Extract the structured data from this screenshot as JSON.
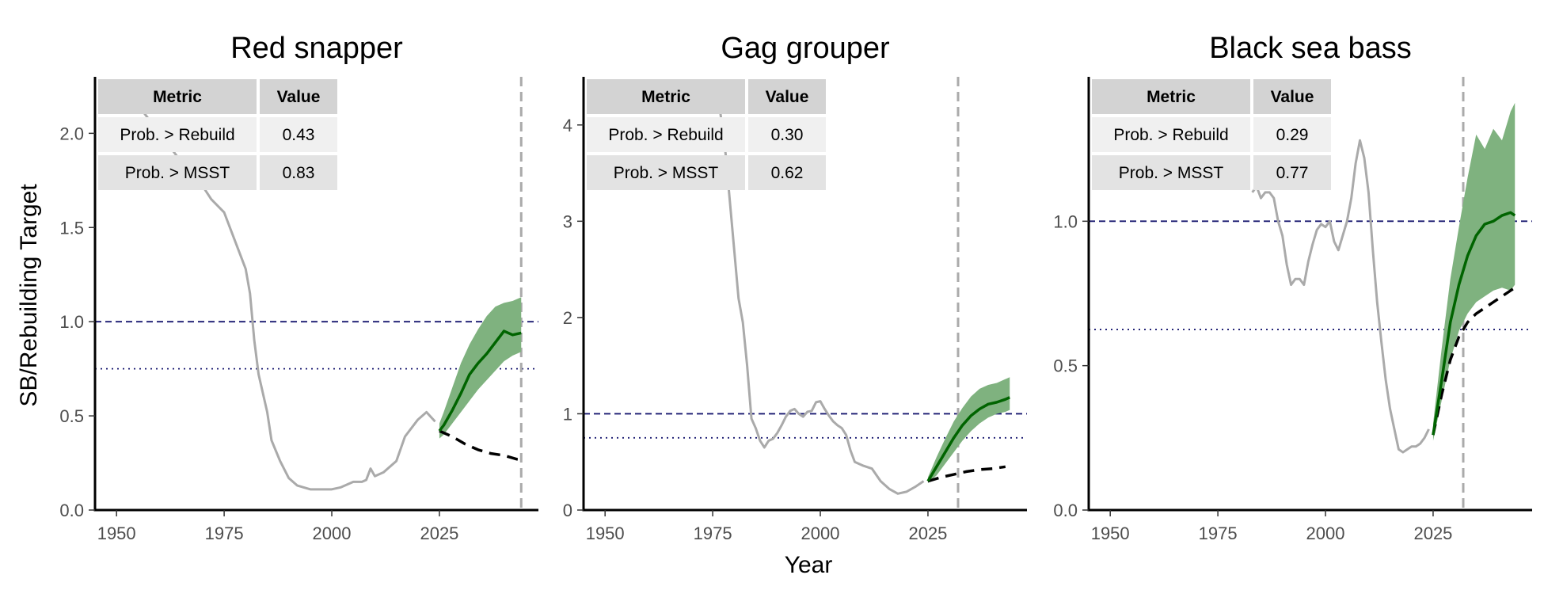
{
  "figure": {
    "xlabel": "Year",
    "ylabel": "SB/Rebuilding Target"
  },
  "colors": {
    "historical": "#aaaaaa",
    "projection_median": "#006400",
    "projection_band": "#7fb27f",
    "alt_projection": "#000000",
    "rebuild_line": "#191970",
    "msst_line": "#191970",
    "target_year_line": "#aaaaaa",
    "table_header_bg": "#d3d3d3",
    "table_row1_bg": "#f0f0f0",
    "table_row2_bg": "#e3e3e3"
  },
  "chart_data": [
    {
      "type": "line",
      "title": "Red snapper",
      "xlim": [
        1945,
        2048
      ],
      "ylim": [
        0,
        2.3
      ],
      "xticks": [
        1950,
        1975,
        2000,
        2025
      ],
      "yticks": [
        0.0,
        0.5,
        1.0,
        1.5,
        2.0
      ],
      "ytick_labels": [
        "0.0",
        "0.5",
        "1.0",
        "1.5",
        "2.0"
      ],
      "rebuild_target": 1.0,
      "msst": 0.75,
      "target_year": 2044,
      "table": {
        "headers": [
          "Metric",
          "Value"
        ],
        "rows": [
          [
            "Prob. > Rebuild",
            "0.43"
          ],
          [
            "Prob. > MSST",
            "0.83"
          ]
        ]
      },
      "historical": {
        "x": [
          1950,
          1955,
          1960,
          1965,
          1970,
          1972,
          1975,
          1978,
          1980,
          1981,
          1982,
          1983,
          1985,
          1986,
          1988,
          1990,
          1992,
          1995,
          1998,
          2000,
          2002,
          2003,
          2005,
          2007,
          2008,
          2009,
          2010,
          2012,
          2015,
          2017,
          2020,
          2022,
          2024
        ],
        "y": [
          2.25,
          2.15,
          2.0,
          1.85,
          1.72,
          1.65,
          1.58,
          1.4,
          1.28,
          1.15,
          0.9,
          0.72,
          0.52,
          0.37,
          0.26,
          0.17,
          0.13,
          0.11,
          0.11,
          0.11,
          0.12,
          0.13,
          0.15,
          0.15,
          0.16,
          0.22,
          0.18,
          0.2,
          0.26,
          0.39,
          0.48,
          0.52,
          0.47
        ]
      },
      "projection": {
        "x": [
          2025,
          2026,
          2028,
          2030,
          2032,
          2034,
          2036,
          2038,
          2040,
          2042,
          2044
        ],
        "median": [
          0.42,
          0.45,
          0.53,
          0.62,
          0.72,
          0.78,
          0.83,
          0.89,
          0.95,
          0.93,
          0.94
        ],
        "lower": [
          0.38,
          0.4,
          0.46,
          0.52,
          0.58,
          0.64,
          0.69,
          0.74,
          0.79,
          0.82,
          0.84
        ],
        "upper": [
          0.46,
          0.52,
          0.65,
          0.78,
          0.88,
          0.96,
          1.03,
          1.08,
          1.1,
          1.11,
          1.13
        ]
      },
      "alt_projection": {
        "x": [
          2025,
          2028,
          2031,
          2034,
          2037,
          2040,
          2043,
          2044
        ],
        "y": [
          0.42,
          0.39,
          0.35,
          0.32,
          0.3,
          0.29,
          0.27,
          0.27
        ]
      }
    },
    {
      "type": "line",
      "title": "Gag grouper",
      "xlim": [
        1945,
        2048
      ],
      "ylim": [
        0,
        4.5
      ],
      "xticks": [
        1950,
        1975,
        2000,
        2025
      ],
      "yticks": [
        0,
        1,
        2,
        3,
        4
      ],
      "ytick_labels": [
        "0",
        "1",
        "2",
        "3",
        "4"
      ],
      "rebuild_target": 1.0,
      "msst": 0.75,
      "target_year": 2032,
      "table": {
        "headers": [
          "Metric",
          "Value"
        ],
        "rows": [
          [
            "Prob. > Rebuild",
            "0.30"
          ],
          [
            "Prob. > MSST",
            "0.62"
          ]
        ]
      },
      "historical": {
        "x": [
          1976,
          1978,
          1979,
          1980,
          1981,
          1982,
          1983,
          1984,
          1985,
          1986,
          1987,
          1988,
          1989,
          1990,
          1991,
          1992,
          1993,
          1994,
          1995,
          1996,
          1997,
          1998,
          1999,
          2000,
          2001,
          2002,
          2003,
          2004,
          2005,
          2006,
          2007,
          2008,
          2010,
          2012,
          2014,
          2016,
          2018,
          2020,
          2022,
          2024
        ],
        "y": [
          4.4,
          3.7,
          3.2,
          2.7,
          2.2,
          1.95,
          1.5,
          0.95,
          0.85,
          0.72,
          0.65,
          0.72,
          0.74,
          0.8,
          0.88,
          0.97,
          1.03,
          1.05,
          1.0,
          0.97,
          1.02,
          1.03,
          1.12,
          1.13,
          1.05,
          0.98,
          0.92,
          0.88,
          0.85,
          0.78,
          0.62,
          0.5,
          0.46,
          0.43,
          0.3,
          0.22,
          0.17,
          0.19,
          0.24,
          0.3
        ]
      },
      "projection": {
        "x": [
          2025,
          2027,
          2029,
          2031,
          2033,
          2035,
          2037,
          2039,
          2041,
          2043,
          2044
        ],
        "median": [
          0.3,
          0.45,
          0.6,
          0.75,
          0.88,
          0.98,
          1.05,
          1.1,
          1.12,
          1.15,
          1.17
        ],
        "lower": [
          0.28,
          0.36,
          0.48,
          0.6,
          0.72,
          0.82,
          0.9,
          0.96,
          1.0,
          1.02,
          1.04
        ],
        "upper": [
          0.34,
          0.55,
          0.74,
          0.92,
          1.06,
          1.18,
          1.26,
          1.3,
          1.32,
          1.36,
          1.38
        ]
      },
      "alt_projection": {
        "x": [
          2025,
          2028,
          2031,
          2034,
          2037,
          2040,
          2043
        ],
        "y": [
          0.3,
          0.34,
          0.37,
          0.4,
          0.42,
          0.43,
          0.45
        ]
      }
    },
    {
      "type": "line",
      "title": "Black sea bass",
      "xlim": [
        1945,
        2048
      ],
      "ylim": [
        0,
        1.5
      ],
      "xticks": [
        1950,
        1975,
        2000,
        2025
      ],
      "yticks": [
        0.0,
        0.5,
        1.0
      ],
      "ytick_labels": [
        "0.0",
        "0.5",
        "1.0"
      ],
      "rebuild_target": 1.0,
      "msst": 0.625,
      "target_year": 2032,
      "table": {
        "headers": [
          "Metric",
          "Value"
        ],
        "rows": [
          [
            "Prob. > Rebuild",
            "0.29"
          ],
          [
            "Prob. > MSST",
            "0.77"
          ]
        ]
      },
      "historical": {
        "x": [
          1983,
          1984,
          1985,
          1986,
          1987,
          1988,
          1989,
          1990,
          1991,
          1992,
          1993,
          1994,
          1995,
          1996,
          1997,
          1998,
          1999,
          2000,
          2001,
          2002,
          2003,
          2004,
          2005,
          2006,
          2007,
          2008,
          2009,
          2010,
          2011,
          2012,
          2013,
          2014,
          2015,
          2016,
          2017,
          2018,
          2019,
          2020,
          2021,
          2022,
          2023,
          2024
        ],
        "y": [
          1.1,
          1.12,
          1.08,
          1.1,
          1.1,
          1.08,
          1.0,
          0.95,
          0.85,
          0.78,
          0.8,
          0.8,
          0.78,
          0.86,
          0.92,
          0.97,
          0.99,
          0.98,
          1.0,
          0.93,
          0.9,
          0.95,
          1.0,
          1.08,
          1.2,
          1.28,
          1.22,
          1.1,
          0.9,
          0.72,
          0.58,
          0.45,
          0.35,
          0.28,
          0.21,
          0.2,
          0.21,
          0.22,
          0.22,
          0.23,
          0.25,
          0.28
        ]
      },
      "projection": {
        "x": [
          2025,
          2027,
          2029,
          2031,
          2033,
          2035,
          2037,
          2039,
          2041,
          2043,
          2044
        ],
        "median": [
          0.26,
          0.45,
          0.65,
          0.78,
          0.88,
          0.95,
          0.99,
          1.0,
          1.02,
          1.03,
          1.02
        ],
        "lower": [
          0.24,
          0.38,
          0.52,
          0.62,
          0.68,
          0.72,
          0.74,
          0.76,
          0.77,
          0.76,
          0.78
        ],
        "upper": [
          0.3,
          0.56,
          0.8,
          0.98,
          1.15,
          1.3,
          1.25,
          1.32,
          1.28,
          1.38,
          1.41
        ]
      },
      "alt_projection": {
        "x": [
          2025,
          2027,
          2029,
          2031,
          2033,
          2035,
          2037,
          2039,
          2041,
          2043,
          2044
        ],
        "y": [
          0.26,
          0.4,
          0.52,
          0.6,
          0.65,
          0.68,
          0.7,
          0.72,
          0.74,
          0.76,
          0.77
        ]
      }
    }
  ]
}
